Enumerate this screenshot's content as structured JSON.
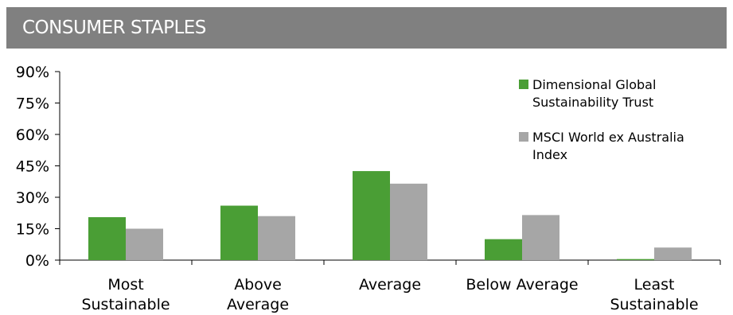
{
  "header": {
    "title": "CONSUMER STAPLES"
  },
  "chart_data": {
    "type": "bar",
    "categories": [
      [
        "Most",
        "Sustainable"
      ],
      [
        "Above",
        "Average"
      ],
      [
        "Average"
      ],
      [
        "Below Average"
      ],
      [
        "Least",
        "Sustainable"
      ]
    ],
    "series": [
      {
        "name": [
          "Dimensional Global",
          "Sustainability Trust"
        ],
        "color": "#4A9E35",
        "values": [
          20.5,
          26,
          42.5,
          10,
          0.5
        ]
      },
      {
        "name": [
          "MSCI World ex Australia",
          "Index"
        ],
        "color": "#A6A6A6",
        "values": [
          15,
          21,
          36.5,
          21.5,
          6
        ]
      }
    ],
    "y_ticks": [
      "0%",
      "15%",
      "30%",
      "45%",
      "60%",
      "75%",
      "90%"
    ],
    "ylim": [
      0,
      90
    ],
    "grid": false,
    "legend": "top-right"
  }
}
